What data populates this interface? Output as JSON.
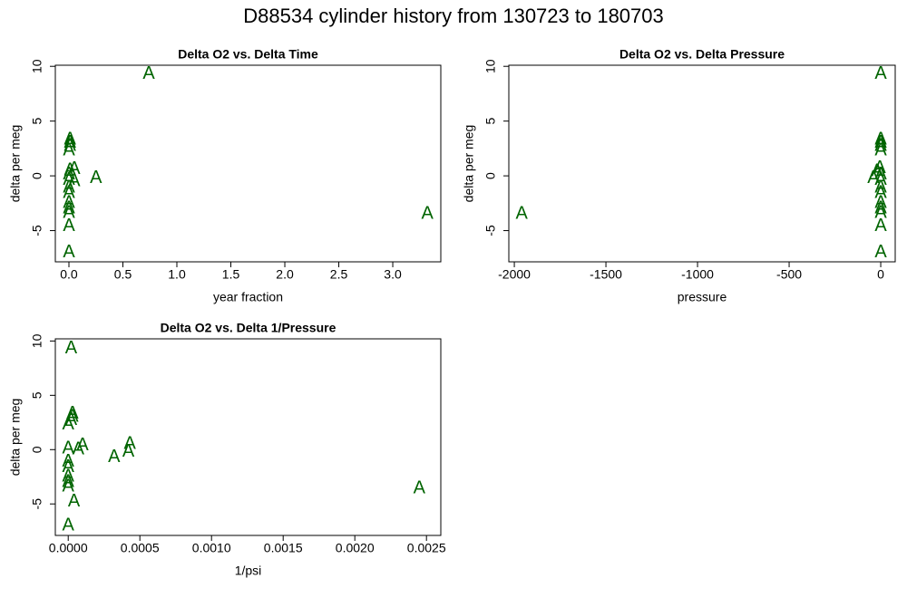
{
  "title": "D88534   cylinder history from  130723  to  180703",
  "chart_data": [
    {
      "type": "scatter",
      "title": "Delta O2 vs. Delta Time",
      "x_label": "year fraction",
      "y_label": "delta per meg",
      "marker": "A",
      "color": "#006400",
      "x": [
        0.74,
        3.32,
        0.25,
        0.05,
        0.05,
        0.01,
        0.01,
        0.01,
        0.0,
        0.01,
        0.0,
        0.0,
        0.0,
        0.0,
        0.0,
        0.0,
        0.0,
        0.0,
        0.0
      ],
      "values": [
        9.3,
        -3.5,
        -0.2,
        0.6,
        -0.5,
        3.3,
        3.0,
        2.7,
        2.3,
        0.5,
        0.1,
        -0.4,
        -1.1,
        -1.6,
        -2.5,
        -3.0,
        -3.4,
        -4.6,
        -7.0
      ],
      "xlim": [
        -0.126,
        3.445
      ],
      "ylim": [
        -7.85,
        10.1
      ],
      "xticks": [
        {
          "value": 0,
          "label": "0.0"
        },
        0.5,
        {
          "value": 1,
          "label": "1.0"
        },
        1.5,
        {
          "value": 2,
          "label": "2.0"
        },
        2.5,
        {
          "value": 3,
          "label": "3.0"
        }
      ],
      "yticks": [
        -5,
        0,
        5,
        10
      ]
    },
    {
      "type": "scatter",
      "title": "Delta O2 vs. Delta Pressure",
      "x_label": "pressure",
      "y_label": "delta per meg",
      "marker": "A",
      "color": "#006400",
      "x": [
        0,
        -1960,
        -40,
        -20,
        -5,
        0,
        0,
        0,
        0,
        0,
        0,
        0,
        0,
        0,
        0,
        0,
        0,
        0
      ],
      "values": [
        9.3,
        -3.5,
        -0.2,
        0.4,
        0.7,
        3.3,
        3.0,
        2.7,
        2.3,
        0.1,
        -0.4,
        -1.1,
        -1.6,
        -2.5,
        -3.0,
        -3.4,
        -4.6,
        -7.0
      ],
      "xlim": [
        -2030,
        79
      ],
      "ylim": [
        -7.85,
        10.1
      ],
      "xticks": [
        -2000,
        -1500,
        -1000,
        -500,
        0
      ],
      "yticks": [
        -5,
        0,
        5,
        10
      ]
    },
    {
      "type": "scatter",
      "title": "Delta O2 vs. Delta 1/Pressure",
      "x_label": "1/psi",
      "y_label": "delta per meg",
      "marker": "A",
      "color": "#006400",
      "x": [
        2e-05,
        0.00245,
        0.00032,
        0.00043,
        0.00042,
        0.0001,
        7e-05,
        4e-05,
        3e-05,
        3e-05,
        2e-05,
        0,
        0,
        0,
        0,
        0,
        0,
        0,
        0
      ],
      "values": [
        9.3,
        -3.6,
        -0.7,
        0.5,
        -0.2,
        0.4,
        0.0,
        -4.8,
        3.3,
        3.0,
        2.7,
        2.3,
        0.1,
        -1.1,
        -1.6,
        -2.5,
        -3.0,
        -3.4,
        -7.0
      ],
      "xlim": [
        -9e-05,
        0.0026
      ],
      "ylim": [
        -7.9,
        10.2
      ],
      "xticks": [
        {
          "value": 0,
          "label": "0.0000"
        },
        {
          "value": 0.0005,
          "label": "0.0005"
        },
        {
          "value": 0.001,
          "label": "0.0010"
        },
        {
          "value": 0.0015,
          "label": "0.0015"
        },
        {
          "value": 0.002,
          "label": "0.0020"
        },
        {
          "value": 0.0025,
          "label": "0.0025"
        }
      ],
      "yticks": [
        -5,
        0,
        5,
        10
      ]
    }
  ]
}
